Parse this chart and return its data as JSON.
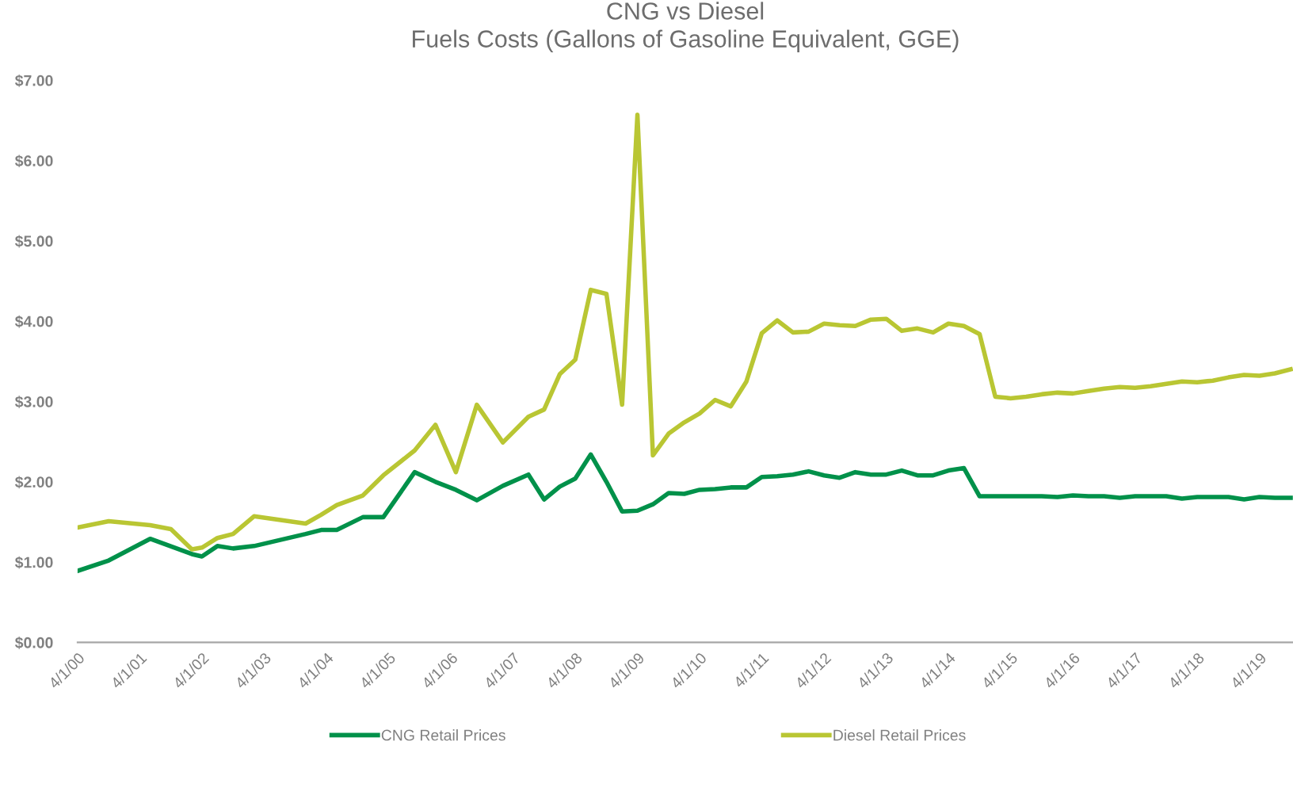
{
  "chart_data": {
    "type": "line",
    "title": "CNG vs Diesel\nFuels Costs (Gallons of Gasoline Equivalent, GGE)",
    "series": [
      {
        "name": "CNG Retail Prices",
        "color": "#00914a",
        "x": [
          "2000-04",
          "2000-10",
          "2001-06",
          "2002-02",
          "2002-04",
          "2002-07",
          "2002-10",
          "2003-02",
          "2003-12",
          "2004-03",
          "2004-06",
          "2004-11",
          "2005-03",
          "2005-09",
          "2006-01",
          "2006-05",
          "2006-09",
          "2007-02",
          "2007-07",
          "2007-10",
          "2008-01",
          "2008-04",
          "2008-07",
          "2008-10",
          "2009-01",
          "2009-04",
          "2009-07",
          "2009-10",
          "2010-01",
          "2010-04",
          "2010-07",
          "2010-10",
          "2011-01",
          "2011-04",
          "2011-07",
          "2011-10",
          "2012-01",
          "2012-04",
          "2012-07",
          "2012-10",
          "2013-01",
          "2013-04",
          "2013-07",
          "2013-10",
          "2014-01",
          "2014-04",
          "2014-07",
          "2014-10",
          "2015-01",
          "2015-04",
          "2015-07",
          "2015-10",
          "2016-01",
          "2016-04",
          "2016-07",
          "2016-10",
          "2017-01",
          "2017-04",
          "2017-07",
          "2017-10",
          "2018-01",
          "2018-04",
          "2018-07",
          "2018-10",
          "2019-01",
          "2019-04",
          "2019-07",
          "2019-10"
        ],
        "values": [
          0.89,
          1.02,
          1.29,
          1.1,
          1.07,
          1.2,
          1.17,
          1.2,
          1.35,
          1.4,
          1.4,
          1.56,
          1.56,
          2.12,
          2.0,
          1.9,
          1.77,
          1.95,
          2.09,
          1.78,
          1.94,
          2.04,
          2.34,
          2.0,
          1.63,
          1.64,
          1.72,
          1.86,
          1.85,
          1.9,
          1.91,
          1.93,
          1.93,
          2.06,
          2.07,
          2.09,
          2.13,
          2.08,
          2.05,
          2.12,
          2.09,
          2.09,
          2.14,
          2.08,
          2.08,
          2.14,
          2.17,
          1.82,
          1.82,
          1.82,
          1.82,
          1.82,
          1.81,
          1.83,
          1.82,
          1.82,
          1.8,
          1.82,
          1.82,
          1.82,
          1.79,
          1.81,
          1.81,
          1.81,
          1.78,
          1.81,
          1.8,
          1.8
        ]
      },
      {
        "name": "Diesel Retail Prices",
        "color": "#b9c633",
        "x": [
          "2000-04",
          "2000-10",
          "2001-06",
          "2001-10",
          "2002-02",
          "2002-04",
          "2002-07",
          "2002-10",
          "2003-02",
          "2003-12",
          "2004-03",
          "2004-06",
          "2004-11",
          "2005-03",
          "2005-09",
          "2006-01",
          "2006-05",
          "2006-09",
          "2007-02",
          "2007-07",
          "2007-10",
          "2008-01",
          "2008-04",
          "2008-07",
          "2008-10",
          "2009-01",
          "2009-04",
          "2009-07",
          "2009-10",
          "2010-01",
          "2010-04",
          "2010-07",
          "2010-10",
          "2011-01",
          "2011-04",
          "2011-07",
          "2011-10",
          "2012-01",
          "2012-04",
          "2012-07",
          "2012-10",
          "2013-01",
          "2013-04",
          "2013-07",
          "2013-10",
          "2014-01",
          "2014-04",
          "2014-07",
          "2014-10",
          "2015-01",
          "2015-04",
          "2015-07",
          "2015-10",
          "2016-01",
          "2016-04",
          "2016-07",
          "2016-10",
          "2017-01",
          "2017-04",
          "2017-07",
          "2017-10",
          "2018-01",
          "2018-04",
          "2018-07",
          "2018-10",
          "2019-01",
          "2019-04",
          "2019-07",
          "2019-10"
        ],
        "values": [
          1.43,
          1.51,
          1.46,
          1.41,
          1.16,
          1.18,
          1.3,
          1.35,
          1.57,
          1.48,
          1.59,
          1.71,
          1.83,
          2.08,
          2.39,
          2.71,
          2.12,
          2.96,
          2.49,
          2.81,
          2.9,
          3.34,
          3.52,
          4.39,
          4.34,
          2.96,
          6.57,
          2.33,
          2.6,
          2.74,
          2.85,
          3.02,
          2.94,
          3.25,
          3.85,
          4.01,
          3.86,
          3.87,
          3.97,
          3.95,
          3.94,
          4.02,
          4.03,
          3.88,
          3.91,
          3.86,
          3.97,
          3.94,
          3.84,
          3.06,
          3.04,
          3.06,
          3.09,
          3.11,
          3.1,
          3.13,
          3.16,
          3.18,
          3.17,
          3.19,
          3.22,
          3.25,
          3.24,
          3.26,
          3.3,
          3.33,
          3.32,
          3.35,
          3.4
        ]
      }
    ],
    "xlim": [
      "2000-04-01",
      "2019-10-15"
    ],
    "xticks": [
      {
        "value": "2000-04-01",
        "label": "4/1/00"
      },
      {
        "value": "2001-04-01",
        "label": "4/1/01"
      },
      {
        "value": "2002-04-01",
        "label": "4/1/02"
      },
      {
        "value": "2003-04-01",
        "label": "4/1/03"
      },
      {
        "value": "2004-04-01",
        "label": "4/1/04"
      },
      {
        "value": "2005-04-01",
        "label": "4/1/05"
      },
      {
        "value": "2006-04-01",
        "label": "4/1/06"
      },
      {
        "value": "2007-04-01",
        "label": "4/1/07"
      },
      {
        "value": "2008-04-01",
        "label": "4/1/08"
      },
      {
        "value": "2009-04-01",
        "label": "4/1/09"
      },
      {
        "value": "2010-04-01",
        "label": "4/1/10"
      },
      {
        "value": "2011-04-01",
        "label": "4/1/11"
      },
      {
        "value": "2012-04-01",
        "label": "4/1/12"
      },
      {
        "value": "2013-04-01",
        "label": "4/1/13"
      },
      {
        "value": "2014-04-01",
        "label": "4/1/14"
      },
      {
        "value": "2015-04-01",
        "label": "4/1/15"
      },
      {
        "value": "2016-04-01",
        "label": "4/1/16"
      },
      {
        "value": "2017-04-01",
        "label": "4/1/17"
      },
      {
        "value": "2018-04-01",
        "label": "4/1/18"
      },
      {
        "value": "2019-04-01",
        "label": "4/1/19"
      }
    ],
    "ylim": [
      0,
      7
    ],
    "yticks": [
      {
        "value": 0,
        "label": "$0.00"
      },
      {
        "value": 1,
        "label": "$1.00"
      },
      {
        "value": 2,
        "label": "$2.00"
      },
      {
        "value": 3,
        "label": "$3.00"
      },
      {
        "value": 4,
        "label": "$4.00"
      },
      {
        "value": 5,
        "label": "$5.00"
      },
      {
        "value": 6,
        "label": "$6.00"
      },
      {
        "value": 7,
        "label": "$7.00"
      }
    ],
    "grid": false,
    "legend": "bottom",
    "marker": "none",
    "line_style": "solid"
  }
}
